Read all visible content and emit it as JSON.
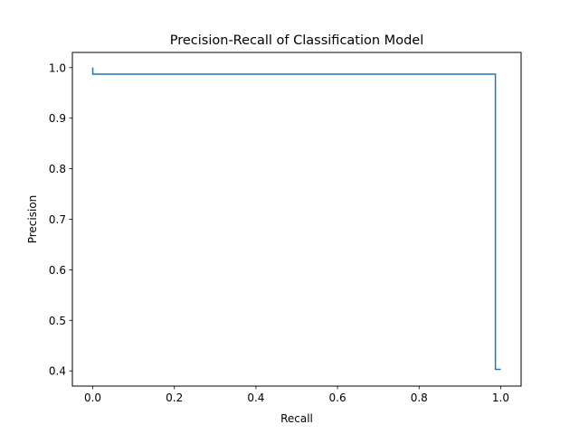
{
  "chart_data": {
    "type": "line",
    "title": "Precision-Recall of Classification Model",
    "xlabel": "Recall",
    "ylabel": "Precision",
    "xlim": [
      -0.05,
      1.05
    ],
    "ylim": [
      0.37,
      1.03
    ],
    "xticks": [
      0.0,
      0.2,
      0.4,
      0.6,
      0.8,
      1.0
    ],
    "xtick_labels": [
      "0.0",
      "0.2",
      "0.4",
      "0.6",
      "0.8",
      "1.0"
    ],
    "yticks": [
      0.4,
      0.5,
      0.6,
      0.7,
      0.8,
      0.9,
      1.0
    ],
    "ytick_labels": [
      "0.4",
      "0.5",
      "0.6",
      "0.7",
      "0.8",
      "0.9",
      "1.0"
    ],
    "grid": false,
    "line_color": "#1f77b4",
    "series": [
      {
        "x": [
          0.0,
          0.0,
          0.987,
          0.987,
          1.0
        ],
        "y": [
          1.0,
          0.987,
          0.987,
          0.403,
          0.403
        ],
        "step": "post"
      }
    ]
  }
}
